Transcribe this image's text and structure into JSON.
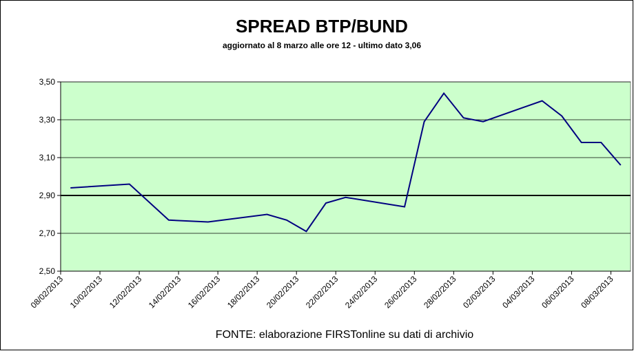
{
  "chart_data": {
    "type": "line",
    "title": "SPREAD  BTP/BUND",
    "subtitle": "aggiornato al 8 marzo alle ore 12 - ultimo dato 3,06",
    "source": "FONTE: elaborazione FIRSTonline su dati di archivio",
    "x": [
      "08/02/2013",
      "11/02/2013",
      "13/02/2013",
      "15/02/2013",
      "18/02/2013",
      "19/02/2013",
      "20/02/2013",
      "21/02/2013",
      "22/02/2013",
      "25/02/2013",
      "26/02/2013",
      "27/02/2013",
      "28/02/2013",
      "01/03/2013",
      "04/03/2013",
      "05/03/2013",
      "06/03/2013",
      "07/03/2013",
      "08/03/2013"
    ],
    "values": [
      2.94,
      2.96,
      2.77,
      2.76,
      2.8,
      2.77,
      2.71,
      2.86,
      2.89,
      2.84,
      3.29,
      3.44,
      3.31,
      3.29,
      3.4,
      3.32,
      3.18,
      3.18,
      3.06
    ],
    "color": "#000080",
    "xlim": [
      "08/02/2013",
      "09/03/2013"
    ],
    "xticks": [
      "08/02/2013",
      "10/02/2013",
      "12/02/2013",
      "14/02/2013",
      "16/02/2013",
      "18/02/2013",
      "20/02/2013",
      "22/02/2013",
      "24/02/2013",
      "26/02/2013",
      "28/02/2013",
      "02/03/2013",
      "04/03/2013",
      "06/03/2013",
      "08/03/2013"
    ],
    "ylim": [
      2.5,
      3.5
    ],
    "yticks": [
      {
        "value": 2.5,
        "label": "2,50"
      },
      {
        "value": 2.7,
        "label": "2,70"
      },
      {
        "value": 2.9,
        "label": "2,90"
      },
      {
        "value": 3.1,
        "label": "3,10"
      },
      {
        "value": 3.3,
        "label": "3,30"
      },
      {
        "value": 3.5,
        "label": "3,50"
      }
    ],
    "baseline": 2.9,
    "grid": true,
    "plot_background": "#ccffcc"
  }
}
